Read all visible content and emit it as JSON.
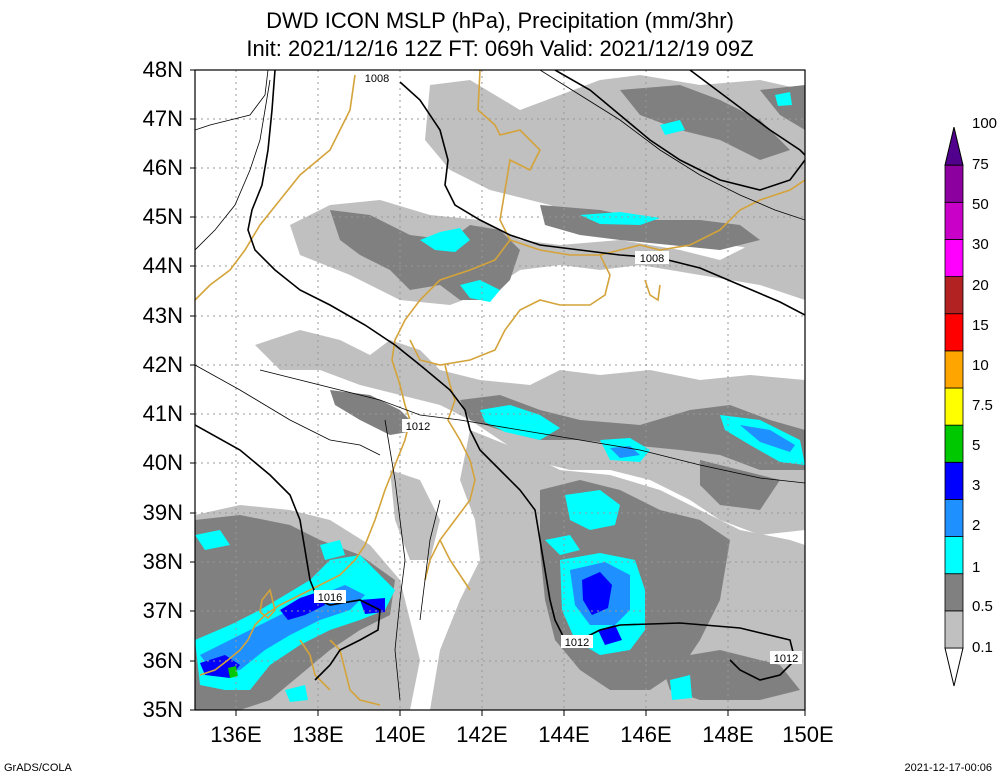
{
  "title": {
    "line1": "DWD ICON MSLP (hPa), Precipitation (mm/3hr)",
    "line2": "Init: 2021/12/16 12Z  FT: 069h  Valid: 2021/12/19 09Z"
  },
  "lat_labels": [
    "48N",
    "47N",
    "46N",
    "45N",
    "44N",
    "43N",
    "42N",
    "41N",
    "40N",
    "39N",
    "38N",
    "37N",
    "36N",
    "35N"
  ],
  "lon_labels": [
    "136E",
    "138E",
    "140E",
    "142E",
    "144E",
    "146E",
    "148E",
    "150E"
  ],
  "colorbar": {
    "labels": [
      "0.1",
      "0.5",
      "1",
      "2",
      "3",
      "5",
      "7.5",
      "10",
      "15",
      "20",
      "30",
      "50",
      "75",
      "100"
    ],
    "colors": [
      "#c0c0c0",
      "#808080",
      "#00ffff",
      "#1e90ff",
      "#0000ff",
      "#00c800",
      "#ffff00",
      "#ffa500",
      "#ff0000",
      "#b22222",
      "#ff00ff",
      "#c800c8",
      "#8c00a0",
      "#50008c"
    ]
  },
  "isobar_labels": {
    "i1008a": "1008",
    "i1008b": "1008",
    "i1012a": "1012",
    "i1012b": "1012",
    "i1012c": "1012",
    "i1016": "1016"
  },
  "footer": {
    "left": "GrADS/COLA",
    "right": "2021-12-17-00:06"
  }
}
